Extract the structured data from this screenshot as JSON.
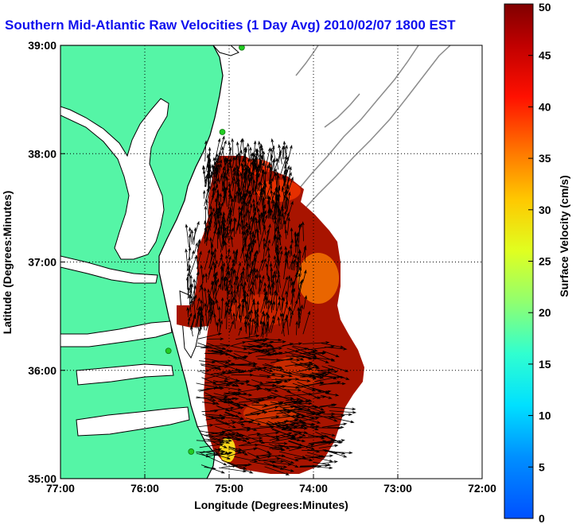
{
  "title": "Southern Mid-Atlantic Raw Velocities (1 Day Avg) 2010/02/07 1800 EST",
  "colors": {
    "land": "#55f5a6",
    "water": "#ffffff",
    "coast": "#000000",
    "bathymetry": "#8c8c8c",
    "station": "#22cc22",
    "vector": "#000000",
    "title": "#1010ee"
  },
  "chart_data": [
    {
      "type": "heatmap",
      "title": "Southern Mid-Atlantic Raw Velocities (1 Day Avg) 2010/02/07 1800 EST",
      "xlabel": "Longitude (Degrees:Minutes)",
      "ylabel": "Latitude (Degrees:Minutes)",
      "xlim": [
        -77,
        -72
      ],
      "ylim": [
        35,
        39
      ],
      "x_ticks": [
        "77:00",
        "76:00",
        "75:00",
        "74:00",
        "73:00",
        "72:00"
      ],
      "y_ticks": [
        "35:00",
        "36:00",
        "37:00",
        "38:00",
        "39:00"
      ],
      "grid": "dotted",
      "quantity": "Surface Velocity (cm/s)",
      "color_range": [
        0,
        50
      ],
      "field_description": "Surface current vectors drawn over a velocity-magnitude field covering roughly 74.1W–75.7W, 35.1N–38.0N; magnitudes mostly 40–50 cm/s (dark red), with lower values near 36.8N 74.4W (~33) and near 35.2N 75.1W (~25).",
      "vector_regions": [
        {
          "lon_min": -75.3,
          "lon_max": -74.3,
          "lat_min": 37.2,
          "lat_max": 37.95,
          "dominant_speed": 46
        },
        {
          "lon_min": -75.5,
          "lon_max": -74.1,
          "lat_min": 36.3,
          "lat_max": 37.2,
          "dominant_speed": 42
        },
        {
          "lon_min": -75.4,
          "lon_max": -73.8,
          "lat_min": 35.1,
          "lat_max": 36.3,
          "dominant_speed": 45
        }
      ],
      "stations": [
        {
          "lon": -74.85,
          "lat": 38.98
        },
        {
          "lon": -75.08,
          "lat": 38.2
        },
        {
          "lon": -75.72,
          "lat": 36.18
        },
        {
          "lon": -75.45,
          "lat": 35.25
        }
      ]
    },
    {
      "type": "colorbar",
      "label": "Surface Velocity (cm/s)",
      "range": [
        0,
        50
      ],
      "ticks": [
        0,
        5,
        10,
        15,
        20,
        25,
        30,
        35,
        40,
        45,
        50
      ],
      "tick_labels": [
        "0",
        "5",
        "10",
        "15",
        "20",
        "25",
        "30",
        "35",
        "40",
        "45",
        "50"
      ],
      "colormap": "jet"
    }
  ]
}
